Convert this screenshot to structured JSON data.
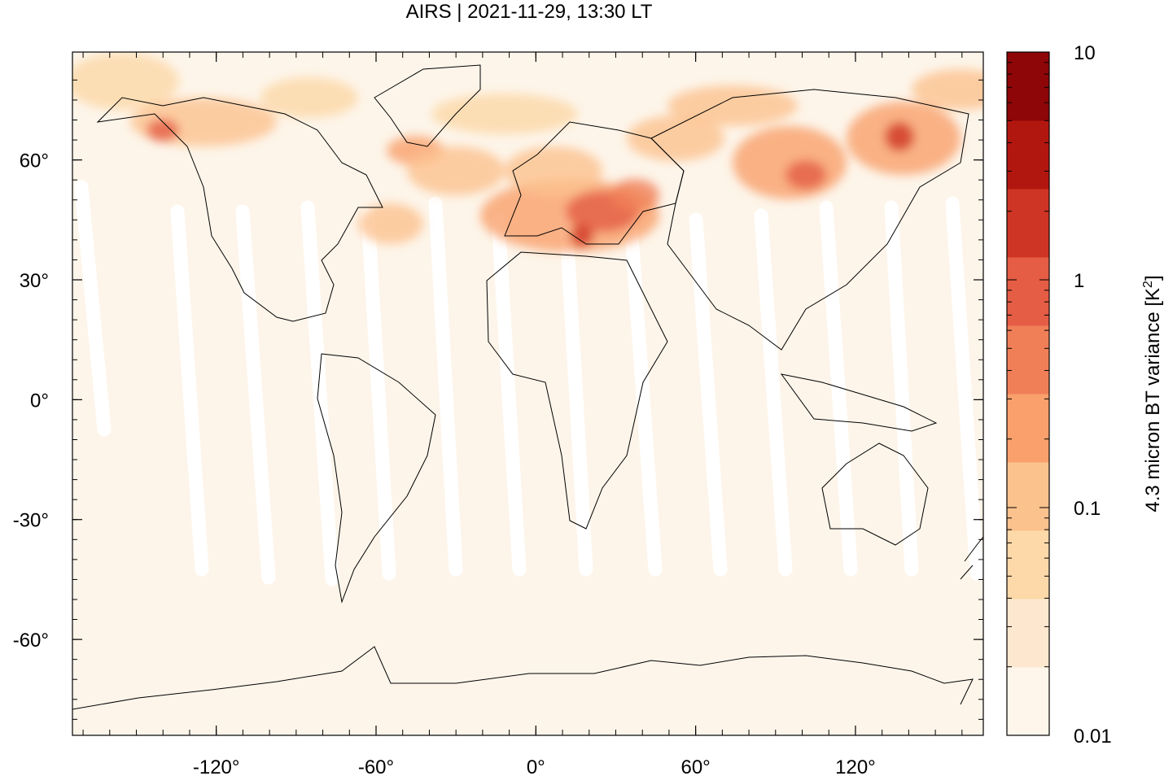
{
  "title": "AIRS | 2021-11-29, 13:30 LT",
  "map": {
    "projection": "equirectangular",
    "lon_range": [
      -174,
      168
    ],
    "lat_range": [
      -84,
      87
    ],
    "x_ticks": [
      {
        "value": -120,
        "label": "-120°"
      },
      {
        "value": -60,
        "label": "-60°"
      },
      {
        "value": 0,
        "label": "0°"
      },
      {
        "value": 60,
        "label": "60°"
      },
      {
        "value": 120,
        "label": "120°"
      }
    ],
    "y_ticks": [
      {
        "value": 60,
        "label": "60°"
      },
      {
        "value": 30,
        "label": "30°"
      },
      {
        "value": 0,
        "label": "0°"
      },
      {
        "value": -30,
        "label": "-30°"
      },
      {
        "value": -60,
        "label": "-60°"
      }
    ],
    "background_color": "#fdf5ea",
    "swath_gap_color": "#ffffff",
    "coastline_color": "#000000"
  },
  "colorbar": {
    "label_main": "4.3 micron BT variance [K",
    "label_sup": "2",
    "label_end": "]",
    "scale": "log",
    "range": [
      0.01,
      10
    ],
    "tick_labels": [
      {
        "value": 10,
        "label": "10"
      },
      {
        "value": 1,
        "label": "1"
      },
      {
        "value": 0.1,
        "label": "0.1"
      },
      {
        "value": 0.01,
        "label": "0.01"
      }
    ],
    "levels": [
      "#fef6ea",
      "#fde8cf",
      "#fdd8a8",
      "#fcc28e",
      "#f9a06c",
      "#f07f58",
      "#e45d44",
      "#cf3524",
      "#b2170f",
      "#8e0607"
    ]
  }
}
